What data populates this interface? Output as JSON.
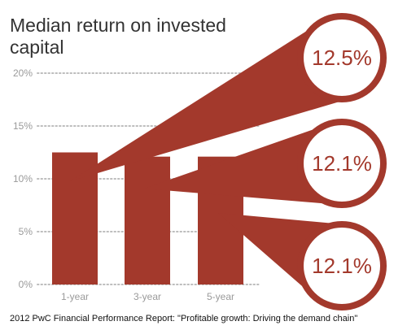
{
  "chart_data": {
    "type": "bar",
    "title_lines": [
      "Median return on invested",
      "capital"
    ],
    "categories": [
      "1-year",
      "3-year",
      "5-year"
    ],
    "values": [
      12.5,
      12.1,
      12.1
    ],
    "value_labels": [
      "12.5%",
      "12.1%",
      "12.1%"
    ],
    "ylim": [
      0,
      20
    ],
    "yticks": [
      0,
      5,
      10,
      15,
      20
    ],
    "ytick_labels": [
      "0%",
      "5%",
      "10%",
      "15%",
      "20%"
    ],
    "grid": true,
    "bar_color": "#a3392c",
    "callout_stroke_color": "#a3392c",
    "source": "2012 PwC Financial Performance Report: \"Profitable growth: Driving the demand chain\""
  }
}
